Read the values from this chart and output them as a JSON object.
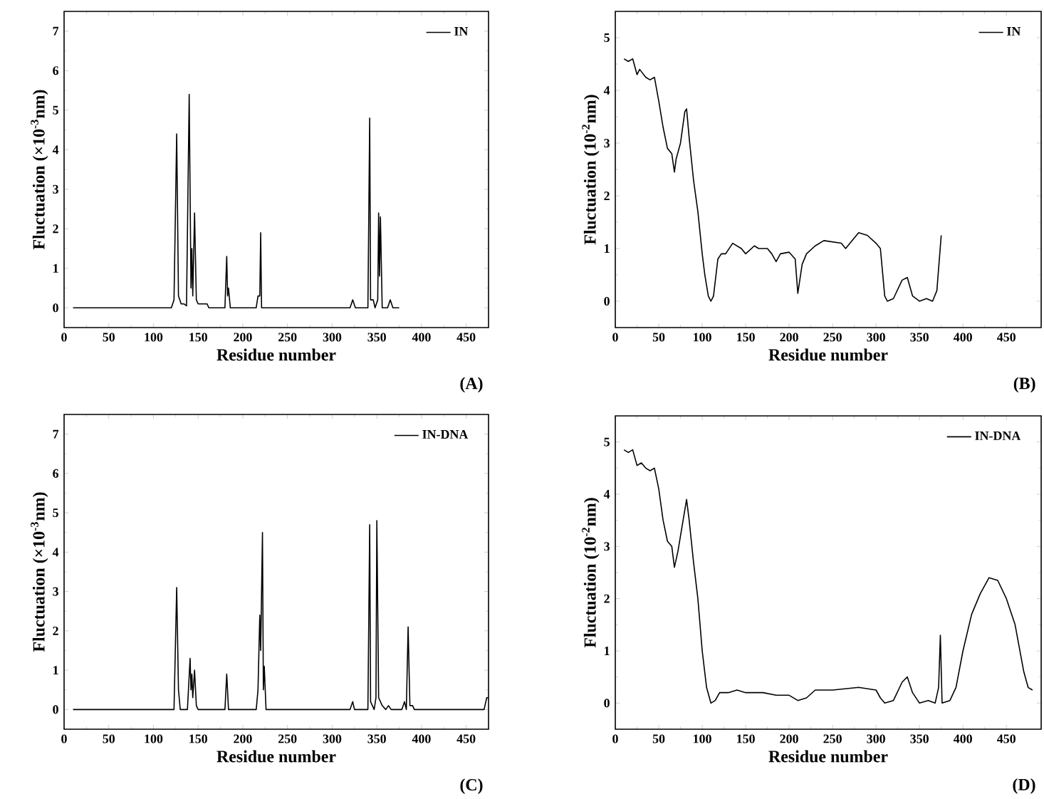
{
  "chart_data": [
    {
      "type": "line",
      "xlabel": "Residue number",
      "ylabel": "Fluctuation (×10$^{-3}$nm)",
      "annotations": [
        "(A)"
      ],
      "legend": "top right",
      "xlim": [
        0,
        475
      ],
      "ylim": [
        -0.5,
        7.5
      ],
      "xticks": [
        0,
        50,
        100,
        150,
        200,
        250,
        300,
        350,
        400,
        450
      ],
      "yticks": [
        0,
        1,
        2,
        3,
        4,
        5,
        6,
        7
      ],
      "series": [
        {
          "name": "IN",
          "color": "#000000",
          "x": [
            10,
            120,
            123,
            126,
            128,
            131,
            134,
            137,
            140,
            142,
            143,
            144,
            146,
            148,
            150,
            155,
            160,
            162,
            180,
            182,
            183,
            184,
            186,
            215,
            217,
            219,
            220,
            221,
            320,
            323,
            326,
            340,
            342,
            343,
            346,
            348,
            351,
            352,
            353,
            354,
            356,
            362,
            365,
            368,
            375
          ],
          "values": [
            0,
            0,
            0.2,
            4.4,
            0.3,
            0.1,
            0.1,
            0.05,
            5.4,
            0.5,
            1.5,
            0.3,
            2.4,
            0.2,
            0.1,
            0.1,
            0.1,
            0,
            0,
            1.3,
            0.3,
            0.5,
            0,
            0,
            0.3,
            0.3,
            1.9,
            0,
            0,
            0.2,
            0,
            0,
            4.8,
            0.2,
            0.2,
            0,
            0.2,
            2.4,
            0.8,
            2.3,
            0,
            0,
            0.2,
            0,
            0
          ]
        }
      ]
    },
    {
      "type": "line",
      "xlabel": "Residue number",
      "ylabel": "Fluctuation (10$^{-2}$nm)",
      "annotations": [
        "(B)"
      ],
      "legend": "top right",
      "xlim": [
        0,
        490
      ],
      "ylim": [
        -0.5,
        5.5
      ],
      "xticks": [
        0,
        50,
        100,
        150,
        200,
        250,
        300,
        350,
        400,
        450
      ],
      "yticks": [
        0,
        1,
        2,
        3,
        4,
        5
      ],
      "series": [
        {
          "name": "IN",
          "color": "#000000",
          "x": [
            10,
            15,
            20,
            25,
            28,
            35,
            40,
            45,
            50,
            55,
            60,
            65,
            68,
            70,
            75,
            80,
            82,
            85,
            90,
            95,
            100,
            103,
            107,
            110,
            113,
            118,
            122,
            127,
            135,
            145,
            150,
            160,
            165,
            175,
            180,
            185,
            190,
            200,
            207,
            210,
            215,
            220,
            230,
            240,
            260,
            265,
            270,
            280,
            290,
            300,
            305,
            310,
            313,
            320,
            330,
            336,
            342,
            350,
            358,
            365,
            370,
            375
          ],
          "values": [
            4.6,
            4.55,
            4.6,
            4.3,
            4.4,
            4.25,
            4.2,
            4.25,
            3.8,
            3.3,
            2.9,
            2.8,
            2.45,
            2.7,
            3.0,
            3.6,
            3.65,
            3.1,
            2.3,
            1.7,
            0.9,
            0.5,
            0.1,
            0,
            0.1,
            0.8,
            0.9,
            0.9,
            1.1,
            1.0,
            0.9,
            1.05,
            1.0,
            1.0,
            0.9,
            0.75,
            0.9,
            0.93,
            0.8,
            0.15,
            0.7,
            0.9,
            1.05,
            1.15,
            1.1,
            1.0,
            1.1,
            1.3,
            1.25,
            1.1,
            1.0,
            0.1,
            0,
            0.05,
            0.4,
            0.45,
            0.1,
            0,
            0.05,
            0,
            0.2,
            1.25
          ]
        }
      ]
    },
    {
      "type": "line",
      "xlabel": "Residue number",
      "ylabel": "Fluctuation (×10$^{-3}$nm)",
      "annotations": [
        "(C)"
      ],
      "legend": "top right",
      "xlim": [
        0,
        475
      ],
      "ylim": [
        -0.5,
        7.5
      ],
      "xticks": [
        0,
        50,
        100,
        150,
        200,
        250,
        300,
        350,
        400,
        450
      ],
      "yticks": [
        0,
        1,
        2,
        3,
        4,
        5,
        6,
        7
      ],
      "series": [
        {
          "name": "IN-DNA",
          "color": "#000000",
          "x": [
            10,
            123,
            126,
            128,
            130,
            138,
            141,
            142,
            143,
            144,
            146,
            148,
            150,
            180,
            182,
            184,
            215,
            217,
            219,
            220,
            222,
            223,
            224,
            226,
            320,
            323,
            325,
            340,
            342,
            343,
            345,
            347,
            349,
            350,
            352,
            356,
            360,
            363,
            366,
            378,
            381,
            383,
            385,
            387,
            390,
            392,
            470,
            473,
            475
          ],
          "values": [
            0,
            0,
            3.1,
            0.5,
            0,
            0,
            1.3,
            0.5,
            0.9,
            0.3,
            1.0,
            0.1,
            0,
            0,
            0.9,
            0,
            0,
            0.5,
            2.4,
            1.5,
            4.5,
            0.5,
            1.1,
            0,
            0,
            0.2,
            0,
            0,
            4.7,
            0.2,
            0.1,
            0,
            0.3,
            4.8,
            0.3,
            0.1,
            0,
            0.1,
            0,
            0,
            0.2,
            0,
            2.1,
            0.1,
            0.1,
            0,
            0,
            0.3,
            0.3
          ]
        }
      ]
    },
    {
      "type": "line",
      "xlabel": "Residue number",
      "ylabel": "Fluctuation (10$^{-2}$nm)",
      "annotations": [
        "(D)"
      ],
      "legend": "top right",
      "xlim": [
        0,
        490
      ],
      "ylim": [
        -0.5,
        5.5
      ],
      "xticks": [
        0,
        50,
        100,
        150,
        200,
        250,
        300,
        350,
        400,
        450
      ],
      "yticks": [
        0,
        1,
        2,
        3,
        4,
        5
      ],
      "series": [
        {
          "name": "IN-DNA",
          "color": "#000000",
          "x": [
            10,
            15,
            20,
            25,
            30,
            35,
            40,
            45,
            50,
            55,
            60,
            65,
            68,
            72,
            78,
            82,
            85,
            90,
            95,
            100,
            105,
            110,
            115,
            120,
            130,
            140,
            150,
            170,
            185,
            200,
            210,
            220,
            230,
            250,
            280,
            300,
            305,
            310,
            320,
            330,
            336,
            342,
            350,
            360,
            368,
            372,
            374,
            376,
            385,
            392,
            400,
            410,
            420,
            430,
            440,
            450,
            460,
            470,
            475,
            480
          ],
          "values": [
            4.85,
            4.8,
            4.85,
            4.55,
            4.6,
            4.5,
            4.45,
            4.5,
            4.1,
            3.5,
            3.1,
            3.0,
            2.6,
            2.9,
            3.5,
            3.9,
            3.5,
            2.7,
            2.0,
            1.0,
            0.3,
            0,
            0.05,
            0.2,
            0.2,
            0.25,
            0.2,
            0.2,
            0.15,
            0.15,
            0.05,
            0.1,
            0.25,
            0.25,
            0.3,
            0.25,
            0.1,
            0,
            0.05,
            0.4,
            0.5,
            0.2,
            0,
            0.05,
            0,
            0.3,
            1.3,
            0,
            0.05,
            0.3,
            1.0,
            1.7,
            2.1,
            2.4,
            2.35,
            2.0,
            1.5,
            0.6,
            0.3,
            0.25
          ]
        }
      ]
    }
  ]
}
